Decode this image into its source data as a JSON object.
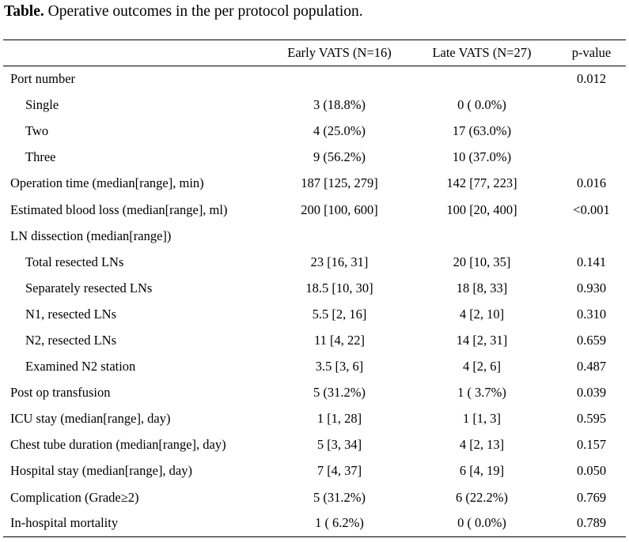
{
  "caption": {
    "bold": "Table.",
    "text": " Operative outcomes in the per protocol population."
  },
  "header": {
    "col0": "",
    "col1": "Early VATS (N=16)",
    "col2": "Late VATS (N=27)",
    "col3": "p-value"
  },
  "rows": [
    {
      "label": "Port number",
      "early": "",
      "late": "",
      "p": "0.012",
      "indent": false
    },
    {
      "label": "Single",
      "early": "3 (18.8%)",
      "late": "0 ( 0.0%)",
      "p": "",
      "indent": true
    },
    {
      "label": "Two",
      "early": "4 (25.0%)",
      "late": "17 (63.0%)",
      "p": "",
      "indent": true
    },
    {
      "label": "Three",
      "early": "9 (56.2%)",
      "late": "10 (37.0%)",
      "p": "",
      "indent": true
    },
    {
      "label": "Operation time (median[range], min)",
      "early": "187 [125, 279]",
      "late": "142 [77, 223]",
      "p": "0.016",
      "indent": false
    },
    {
      "label": "Estimated blood loss (median[range], ml)",
      "early": "200 [100, 600]",
      "late": "100 [20, 400]",
      "p": "<0.001",
      "indent": false
    },
    {
      "label": "LN dissection (median[range])",
      "early": "",
      "late": "",
      "p": "",
      "indent": false
    },
    {
      "label": "Total resected LNs",
      "early": "23 [16, 31]",
      "late": "20 [10, 35]",
      "p": "0.141",
      "indent": true
    },
    {
      "label": "Separately resected LNs",
      "early": "18.5 [10, 30]",
      "late": "18 [8, 33]",
      "p": "0.930",
      "indent": true
    },
    {
      "label": "N1, resected LNs",
      "early": "5.5 [2, 16]",
      "late": "4 [2, 10]",
      "p": "0.310",
      "indent": true
    },
    {
      "label": "N2, resected LNs",
      "early": "11 [4, 22]",
      "late": "14 [2, 31]",
      "p": "0.659",
      "indent": true
    },
    {
      "label": "Examined N2 station",
      "early": "3.5 [3, 6]",
      "late": "4 [2, 6]",
      "p": "0.487",
      "indent": true
    },
    {
      "label": "Post op transfusion",
      "early": "5 (31.2%)",
      "late": "1 ( 3.7%)",
      "p": "0.039",
      "indent": false
    },
    {
      "label": "ICU stay (median[range], day)",
      "early": "1 [1, 28]",
      "late": "1 [1, 3]",
      "p": "0.595",
      "indent": false
    },
    {
      "label": "Chest tube duration (median[range], day)",
      "early": "5 [3, 34]",
      "late": "4 [2, 13]",
      "p": "0.157",
      "indent": false
    },
    {
      "label": "Hospital stay (median[range], day)",
      "early": "7 [4, 37]",
      "late": "6 [4, 19]",
      "p": "0.050",
      "indent": false
    },
    {
      "label": "Complication (Grade≥2)",
      "early": "5 (31.2%)",
      "late": "6 (22.2%)",
      "p": "0.769",
      "indent": false
    },
    {
      "label": "In-hospital mortality",
      "early": "1 ( 6.2%)",
      "late": "0 ( 0.0%)",
      "p": "0.789",
      "indent": false
    }
  ]
}
